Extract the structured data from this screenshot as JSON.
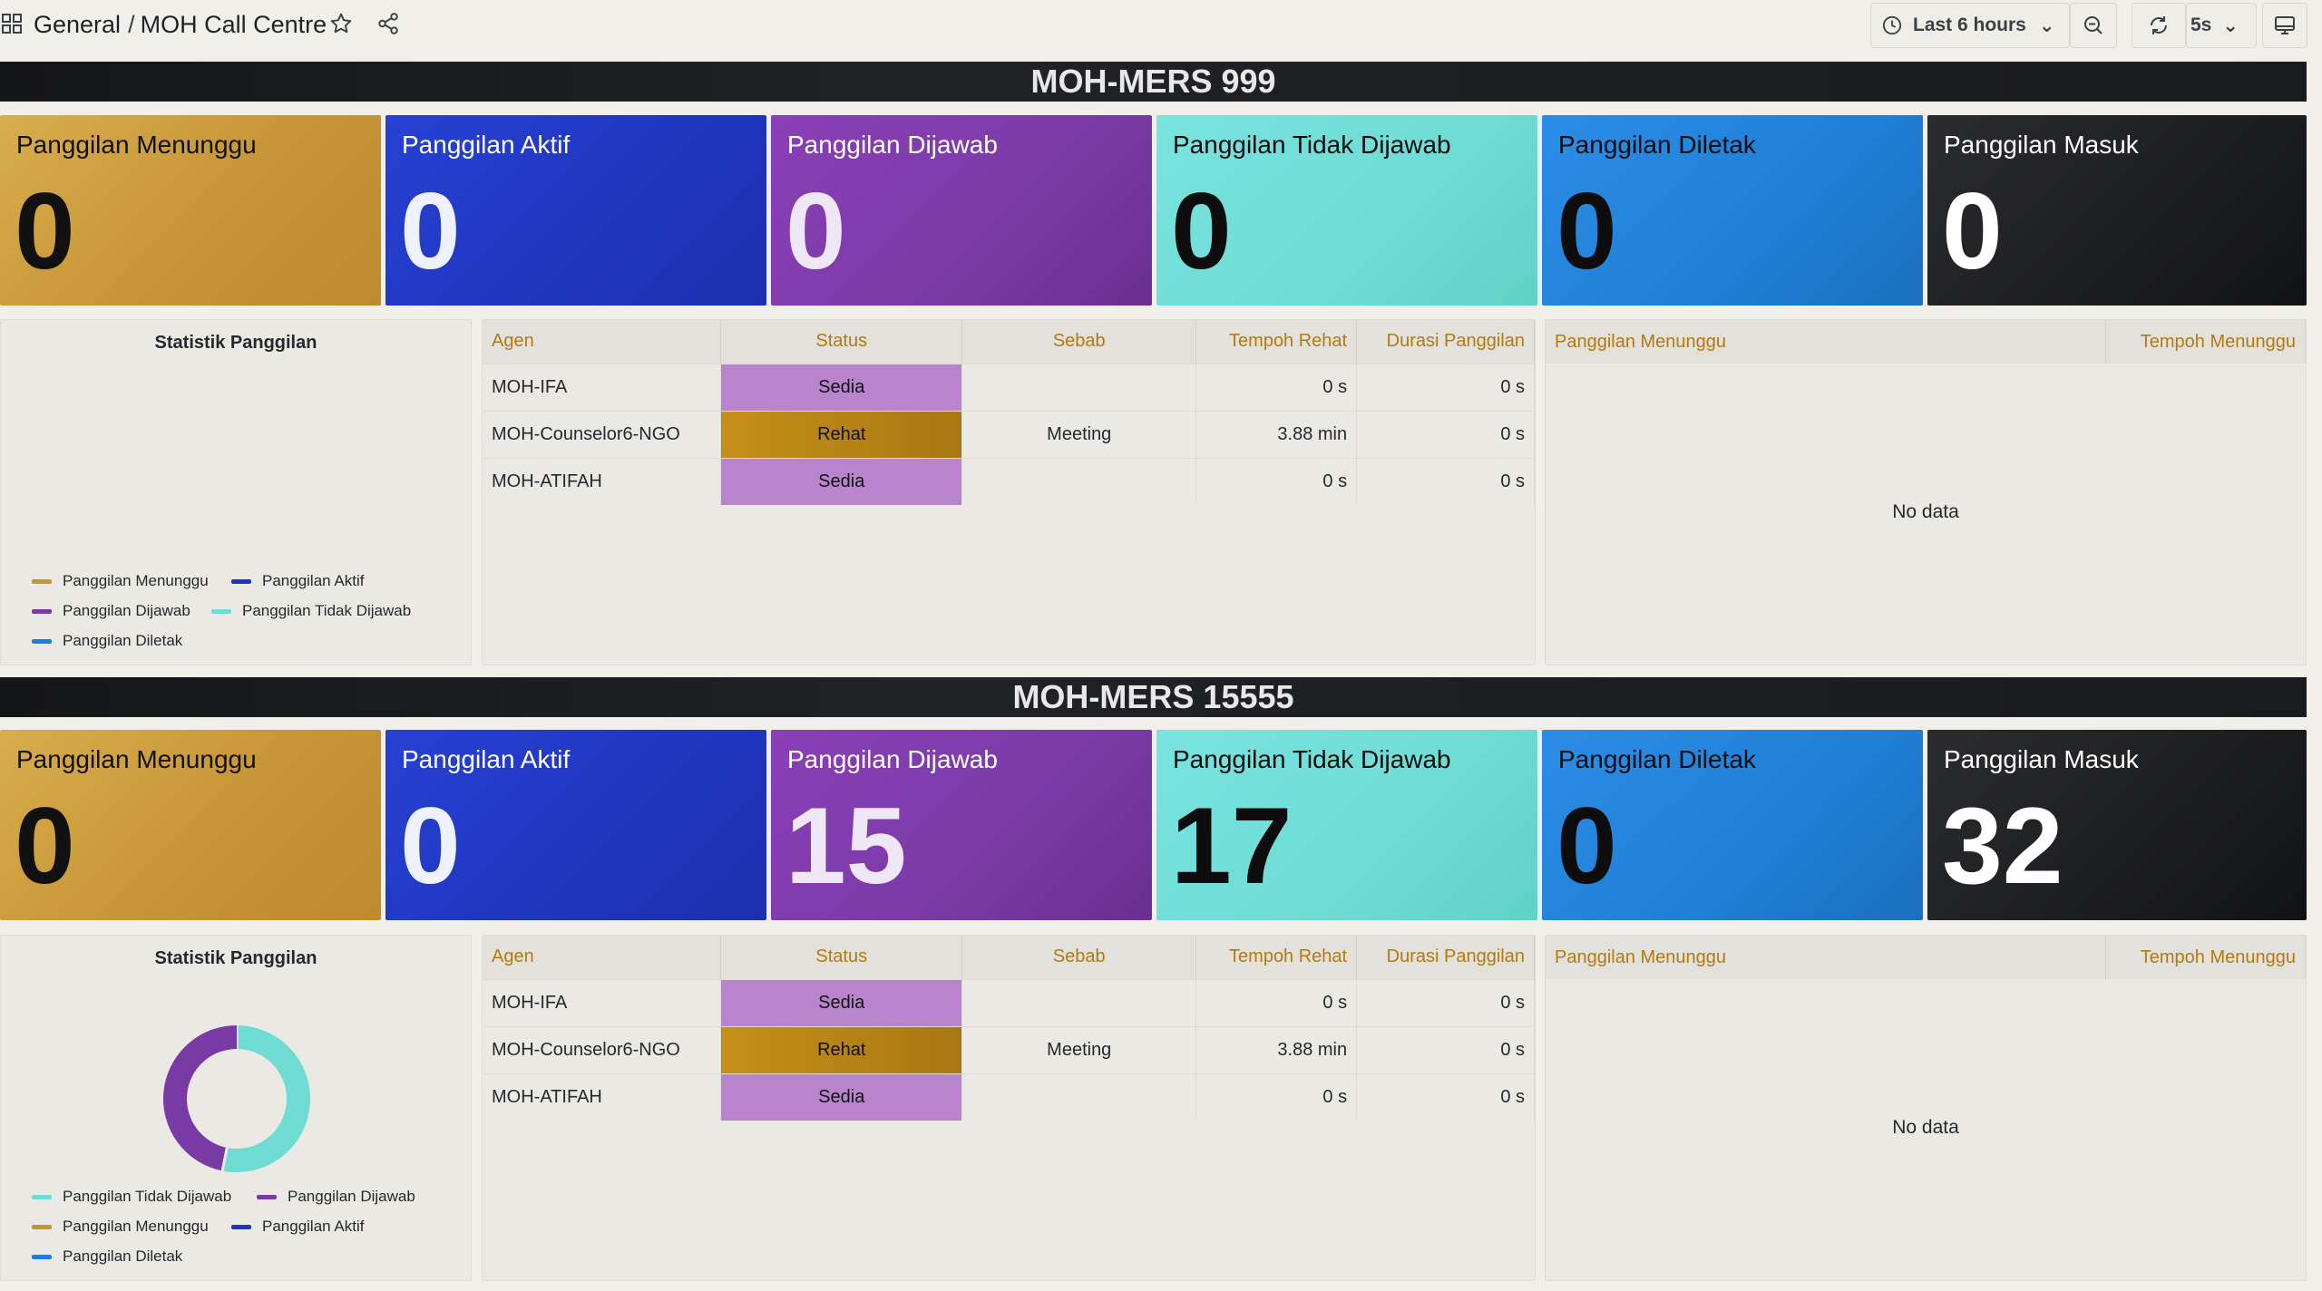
{
  "breadcrumb": {
    "folder": "General",
    "separator": "/",
    "dashboard": "MOH Call Centre"
  },
  "toolbar": {
    "time_range": "Last 6 hours",
    "refresh_interval": "5s"
  },
  "colors": {
    "waiting": "#c8962f",
    "active": "#1f35bd",
    "answered": "#7a3aa6",
    "unanswered": "#6fdcd4",
    "dropped": "#1f7fd6",
    "incoming": "#1c1d1f",
    "status_sedia": "#b984cc",
    "status_rehat": "#b88514"
  },
  "sections": [
    {
      "title": "MOH-MERS 999",
      "stats": [
        {
          "label": "Panggilan Menunggu",
          "value": "0"
        },
        {
          "label": "Panggilan Aktif",
          "value": "0"
        },
        {
          "label": "Panggilan Dijawab",
          "value": "0"
        },
        {
          "label": "Panggilan Tidak Dijawab",
          "value": "0"
        },
        {
          "label": "Panggilan Diletak",
          "value": "0"
        },
        {
          "label": "Panggilan Masuk",
          "value": "0"
        }
      ],
      "chart_data": {
        "type": "pie",
        "title": "Statistik Panggilan",
        "legend": [
          "Panggilan Menunggu",
          "Panggilan Aktif",
          "Panggilan Dijawab",
          "Panggilan Tidak Dijawab",
          "Panggilan Diletak"
        ],
        "values": [
          0,
          0,
          0,
          0,
          0
        ]
      },
      "agents": {
        "headers": [
          "Agen",
          "Status",
          "Sebab",
          "Tempoh Rehat",
          "Durasi Panggilan"
        ],
        "rows": [
          [
            "MOH-IFA",
            "Sedia",
            "",
            "0 s",
            "0 s"
          ],
          [
            "MOH-Counselor6-NGO",
            "Rehat",
            "Meeting",
            "3.88 min",
            "0 s"
          ],
          [
            "MOH-ATIFAH",
            "Sedia",
            "",
            "0 s",
            "0 s"
          ]
        ]
      },
      "queue": {
        "headers": [
          "Panggilan Menunggu",
          "Tempoh Menunggu"
        ],
        "empty_text": "No data"
      }
    },
    {
      "title": "MOH-MERS 15555",
      "stats": [
        {
          "label": "Panggilan Menunggu",
          "value": "0"
        },
        {
          "label": "Panggilan Aktif",
          "value": "0"
        },
        {
          "label": "Panggilan Dijawab",
          "value": "15"
        },
        {
          "label": "Panggilan Tidak Dijawab",
          "value": "17"
        },
        {
          "label": "Panggilan Diletak",
          "value": "0"
        },
        {
          "label": "Panggilan Masuk",
          "value": "32"
        }
      ],
      "chart_data": {
        "type": "pie",
        "title": "Statistik Panggilan",
        "legend": [
          "Panggilan Tidak Dijawab",
          "Panggilan Dijawab",
          "Panggilan Menunggu",
          "Panggilan Aktif",
          "Panggilan Diletak"
        ],
        "values": [
          17,
          15,
          0,
          0,
          0
        ]
      },
      "agents": {
        "headers": [
          "Agen",
          "Status",
          "Sebab",
          "Tempoh Rehat",
          "Durasi Panggilan"
        ],
        "rows": [
          [
            "MOH-IFA",
            "Sedia",
            "",
            "0 s",
            "0 s"
          ],
          [
            "MOH-Counselor6-NGO",
            "Rehat",
            "Meeting",
            "3.88 min",
            "0 s"
          ],
          [
            "MOH-ATIFAH",
            "Sedia",
            "",
            "0 s",
            "0 s"
          ]
        ]
      },
      "queue": {
        "headers": [
          "Panggilan Menunggu",
          "Tempoh Menunggu"
        ],
        "empty_text": "No data"
      }
    }
  ]
}
